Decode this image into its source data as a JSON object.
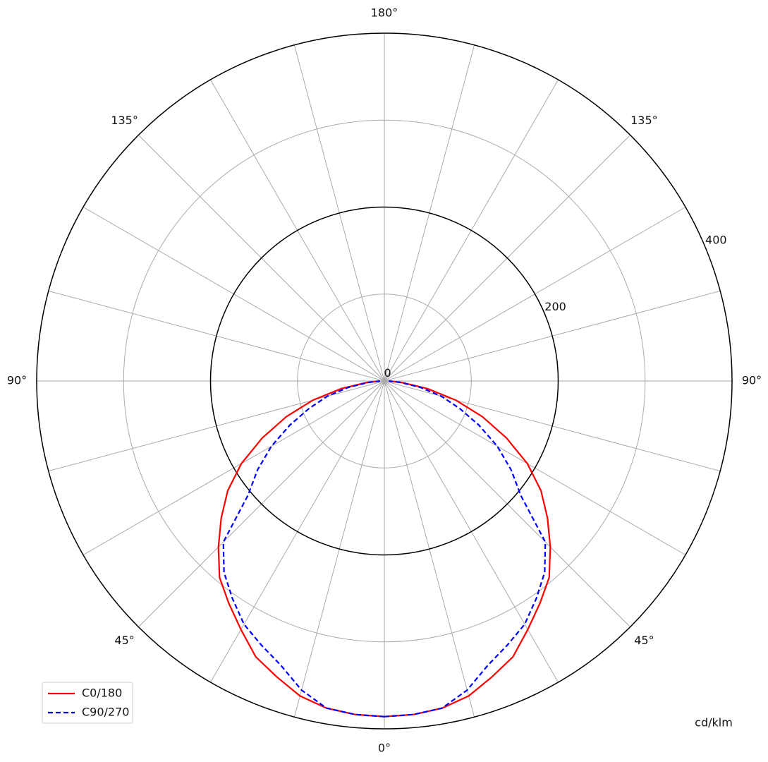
{
  "chart_data": {
    "type": "polar-line",
    "x": [
      0,
      5,
      10,
      15,
      20,
      25,
      30,
      35,
      40,
      45,
      50,
      55,
      60,
      65,
      70,
      75,
      80,
      85,
      90
    ],
    "series": [
      {
        "name": "C0/180",
        "color": "#ff0000",
        "dash": "solid",
        "values": [
          386,
          385,
          382,
          375,
          362,
          350,
          330,
          312,
          295,
          270,
          245,
          220,
          190,
          155,
          120,
          85,
          50,
          20,
          5
        ]
      },
      {
        "name": "C90/270",
        "color": "#0000ff",
        "dash": "dashed",
        "values": [
          386,
          385,
          382,
          368,
          348,
          335,
          323,
          305,
          287,
          262,
          205,
          178,
          150,
          120,
          92,
          68,
          42,
          18,
          5
        ]
      }
    ],
    "rlim": [
      0,
      400
    ],
    "rticks": [
      0,
      200,
      400
    ],
    "rminor": [
      100,
      300
    ],
    "theta_grid_step": 15,
    "thetaticks": [
      {
        "value": 0,
        "label": "0°"
      },
      {
        "value": 45,
        "label": "45°"
      },
      {
        "value": 90,
        "label": "90°"
      },
      {
        "value": 135,
        "label": "135°"
      },
      {
        "value": 180,
        "label": "180°"
      }
    ],
    "unit_label": "cd/klm",
    "legend": "lower left",
    "grid": true
  }
}
